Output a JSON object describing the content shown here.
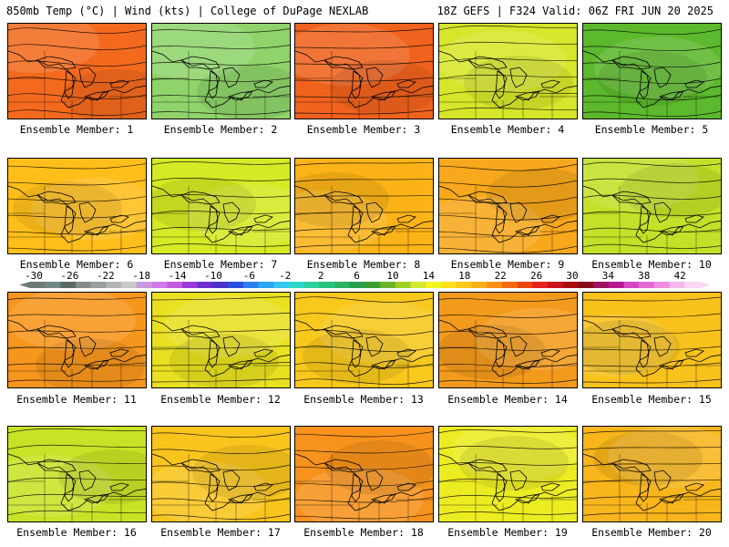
{
  "header": {
    "left": "850mb Temp (°C) | Wind (kts) | College of DuPage NEXLAB",
    "right": "18Z GEFS | F324 Valid: 06Z FRI JUN 20 2025"
  },
  "members": [
    {
      "label": "Ensemble Member: 1",
      "fill": "#f36a1e"
    },
    {
      "label": "Ensemble Member: 2",
      "fill": "#8fd36a"
    },
    {
      "label": "Ensemble Member: 3",
      "fill": "#f0621d"
    },
    {
      "label": "Ensemble Member: 4",
      "fill": "#d6e62a"
    },
    {
      "label": "Ensemble Member: 5",
      "fill": "#5cb82c"
    },
    {
      "label": "Ensemble Member: 6",
      "fill": "#ffbe1a"
    },
    {
      "label": "Ensemble Member: 7",
      "fill": "#d4ea24"
    },
    {
      "label": "Ensemble Member: 8",
      "fill": "#fbb317"
    },
    {
      "label": "Ensemble Member: 9",
      "fill": "#f8a81c"
    },
    {
      "label": "Ensemble Member: 10",
      "fill": "#c4e028"
    },
    {
      "label": "Ensemble Member: 11",
      "fill": "#f7961d"
    },
    {
      "label": "Ensemble Member: 12",
      "fill": "#e8e020"
    },
    {
      "label": "Ensemble Member: 13",
      "fill": "#f8c81c"
    },
    {
      "label": "Ensemble Member: 14",
      "fill": "#f39a1c"
    },
    {
      "label": "Ensemble Member: 15",
      "fill": "#f8c11c"
    },
    {
      "label": "Ensemble Member: 16",
      "fill": "#c9e226"
    },
    {
      "label": "Ensemble Member: 17",
      "fill": "#f9c41c"
    },
    {
      "label": "Ensemble Member: 18",
      "fill": "#f7921c"
    },
    {
      "label": "Ensemble Member: 19",
      "fill": "#ecec22"
    },
    {
      "label": "Ensemble Member: 20",
      "fill": "#f8b51c"
    }
  ],
  "colorbar": {
    "labels": [
      "-30",
      "-26",
      "-22",
      "-18",
      "-14",
      "-10",
      "-6",
      "-2",
      "2",
      "6",
      "10",
      "14",
      "18",
      "22",
      "26",
      "30",
      "34",
      "38",
      "42"
    ],
    "colors": [
      "#6f7a78",
      "#6f8a86",
      "#5a6a68",
      "#848c8c",
      "#9aa0a0",
      "#b2b6b6",
      "#c9c9c9",
      "#c79ae0",
      "#d07ae6",
      "#c15be0",
      "#9a3ad8",
      "#6f2fd0",
      "#4a34cc",
      "#2a50e0",
      "#2a7ff0",
      "#2aa6f2",
      "#33c6ee",
      "#2fd9c8",
      "#2fd0a0",
      "#28c27c",
      "#2eb062",
      "#28a04a",
      "#3a9f2e",
      "#6ab42a",
      "#9fd024",
      "#d2e82a",
      "#f4f422",
      "#ffe01a",
      "#ffc81a",
      "#ffb015",
      "#ff9012",
      "#f86a12",
      "#ee4410",
      "#e6241c",
      "#cc1418",
      "#a80e10",
      "#8a0c1a",
      "#9c1460",
      "#b81890",
      "#d24ac2",
      "#e66ad6",
      "#f08ee0",
      "#f6b6ea",
      "#fad6f2"
    ]
  }
}
